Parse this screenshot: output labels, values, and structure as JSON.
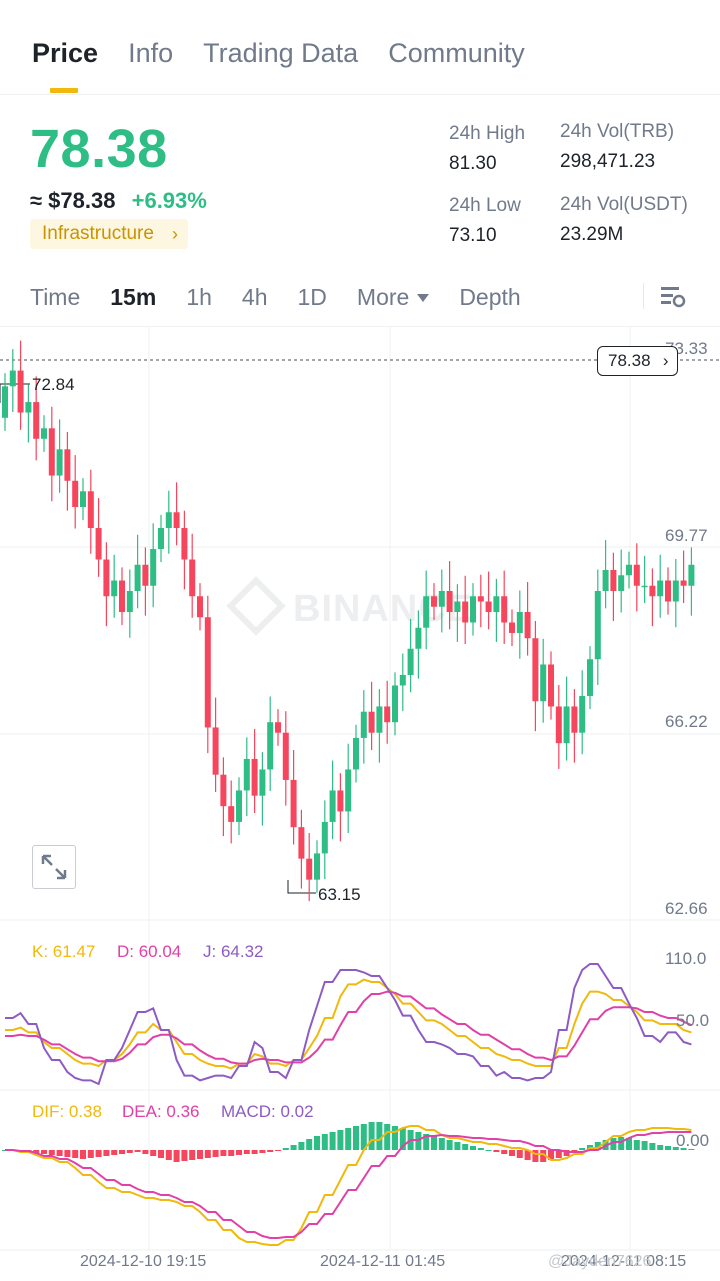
{
  "tabs": {
    "price": "Price",
    "info": "Info",
    "trading_data": "Trading Data",
    "community": "Community"
  },
  "ticker": {
    "price": "78.38",
    "approx_usd": "≈ $78.38",
    "change": "+6.93%",
    "category": "Infrastructure",
    "high_label": "24h High",
    "high": "81.30",
    "low_label": "24h Low",
    "low": "73.10",
    "vol_base_label": "24h Vol(TRB)",
    "vol_base": "298,471.23",
    "vol_quote_label": "24h Vol(USDT)",
    "vol_quote": "23.29M"
  },
  "timeframes": {
    "time": "Time",
    "m15": "15m",
    "h1": "1h",
    "h4": "4h",
    "d1": "1D",
    "more": "More",
    "depth": "Depth",
    "selected": "15m"
  },
  "chart": {
    "last_price_tag": "78.38",
    "axis_labels": [
      "73.33",
      "69.77",
      "66.22",
      "62.66"
    ],
    "high_marker": "72.84",
    "low_marker": "63.15",
    "watermark": "BINANCE",
    "kdj": {
      "k": "K: 61.47",
      "d": "D: 60.04",
      "j": "J: 64.32",
      "axis_top": "110.0",
      "axis_mid": "50.0"
    },
    "macd": {
      "dif": "DIF: 0.38",
      "dea": "DEA: 0.36",
      "macd": "MACD: 0.02",
      "axis_zero": "0.00"
    },
    "dates": [
      "2024-12-10 19:15",
      "2024-12-11 01:45",
      "2024-12-11 08:15"
    ],
    "colors": {
      "up": "#2ebd85",
      "down": "#f6465d",
      "k": "#f0b90b",
      "d": "#e040a8",
      "j": "#8e5bc2"
    }
  },
  "watermark_corner": "@Jayden7626"
}
